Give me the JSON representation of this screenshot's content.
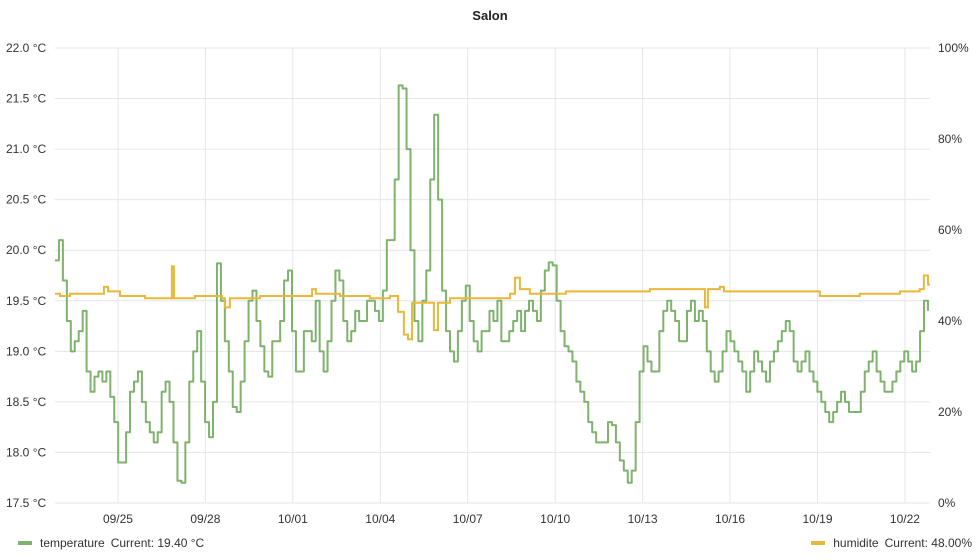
{
  "chart_data": {
    "type": "line",
    "title": "Salon",
    "x_unit": "days since 09/25",
    "xlim": [
      -2.16,
      27.86
    ],
    "x_ticks": [
      0,
      3,
      6,
      9,
      12,
      15,
      18,
      21,
      24,
      27
    ],
    "x_tick_labels": [
      "09/25",
      "09/28",
      "10/01",
      "10/04",
      "10/07",
      "10/10",
      "10/13",
      "10/16",
      "10/19",
      "10/22"
    ],
    "y_left": {
      "ylim": [
        17.5,
        22.0
      ],
      "ticks": [
        17.5,
        18.0,
        18.5,
        19.0,
        19.5,
        20.0,
        20.5,
        21.0,
        21.5,
        22.0
      ],
      "tick_labels": [
        "17.5 °C",
        "18.0 °C",
        "18.5 °C",
        "19.0 °C",
        "19.5 °C",
        "20.0 °C",
        "20.5 °C",
        "21.0 °C",
        "21.5 °C",
        "22.0 °C"
      ]
    },
    "y_right": {
      "ylim": [
        0,
        100
      ],
      "ticks": [
        0,
        20,
        40,
        60,
        80,
        100
      ],
      "tick_labels": [
        "0%",
        "20%",
        "40%",
        "60%",
        "80%",
        "100%"
      ]
    },
    "grid": true,
    "legend_placement": "bottom",
    "series": [
      {
        "name": "temperature",
        "axis": "left",
        "color": "#7EB26D",
        "legend_label": "temperature",
        "current_label": "Current: 19.40 °C",
        "t_start": -2.16,
        "t_end": 27.79,
        "values": [
          19.9,
          20.1,
          19.7,
          19.3,
          19.0,
          19.1,
          19.2,
          19.4,
          18.8,
          18.6,
          18.75,
          18.8,
          18.7,
          18.8,
          18.55,
          18.3,
          17.9,
          17.9,
          18.2,
          18.6,
          18.7,
          18.8,
          18.5,
          18.3,
          18.2,
          18.1,
          18.2,
          18.6,
          18.7,
          18.5,
          18.1,
          17.72,
          17.7,
          18.1,
          18.7,
          19.0,
          19.2,
          18.7,
          18.3,
          18.15,
          18.5,
          19.87,
          19.5,
          19.1,
          18.8,
          18.45,
          18.4,
          18.7,
          19.1,
          19.5,
          19.6,
          19.3,
          19.05,
          18.8,
          18.75,
          19.1,
          19.1,
          19.3,
          19.7,
          19.8,
          19.2,
          18.8,
          18.8,
          19.2,
          19.2,
          19.1,
          19.5,
          19.0,
          18.8,
          19.1,
          19.5,
          19.8,
          19.7,
          19.3,
          19.1,
          19.2,
          19.4,
          19.3,
          19.3,
          19.5,
          19.5,
          19.4,
          19.3,
          19.6,
          20.1,
          20.1,
          20.7,
          21.63,
          21.6,
          21.0,
          20.0,
          19.3,
          19.1,
          19.5,
          19.8,
          20.7,
          21.34,
          20.5,
          19.6,
          19.2,
          19.0,
          18.9,
          19.2,
          19.5,
          19.65,
          19.3,
          19.1,
          19.0,
          19.2,
          19.2,
          19.4,
          19.3,
          19.5,
          19.1,
          19.1,
          19.2,
          19.3,
          19.4,
          19.2,
          19.4,
          19.5,
          19.4,
          19.3,
          19.6,
          19.8,
          19.88,
          19.85,
          19.5,
          19.2,
          19.05,
          19.0,
          18.9,
          18.7,
          18.6,
          18.5,
          18.3,
          18.2,
          18.1,
          18.1,
          18.1,
          18.3,
          18.27,
          18.1,
          17.92,
          17.82,
          17.7,
          17.82,
          18.3,
          18.8,
          19.05,
          18.9,
          18.8,
          18.8,
          19.2,
          19.4,
          19.5,
          19.4,
          19.3,
          19.1,
          19.1,
          19.4,
          19.5,
          19.3,
          19.4,
          19.3,
          19.0,
          18.8,
          18.7,
          18.8,
          19.0,
          19.2,
          19.1,
          19.0,
          18.9,
          18.8,
          18.6,
          18.8,
          19.0,
          18.9,
          18.8,
          18.7,
          18.9,
          19.0,
          19.1,
          19.2,
          19.3,
          19.2,
          18.9,
          18.8,
          18.9,
          19.0,
          18.8,
          18.7,
          18.6,
          18.5,
          18.4,
          18.3,
          18.4,
          18.5,
          18.6,
          18.5,
          18.4,
          18.4,
          18.4,
          18.6,
          18.8,
          18.9,
          19.0,
          18.8,
          18.7,
          18.6,
          18.6,
          18.7,
          18.8,
          18.9,
          19.0,
          18.9,
          18.8,
          18.9,
          19.2,
          19.5,
          19.4
        ]
      },
      {
        "name": "humidite",
        "axis": "right",
        "color": "#EAB839",
        "legend_label": "humidite",
        "current_label": "Current: 48.00%",
        "points": [
          [
            -2.16,
            46
          ],
          [
            -1.99,
            45.5
          ],
          [
            -1.65,
            46
          ],
          [
            -0.62,
            46
          ],
          [
            -0.48,
            47.5
          ],
          [
            -0.34,
            46.5
          ],
          [
            0.07,
            45.5
          ],
          [
            0.93,
            45
          ],
          [
            1.78,
            45
          ],
          [
            1.85,
            52
          ],
          [
            1.92,
            45
          ],
          [
            2.64,
            45.5
          ],
          [
            3.57,
            45
          ],
          [
            3.67,
            43
          ],
          [
            3.84,
            45
          ],
          [
            4.87,
            45.5
          ],
          [
            5.9,
            45.5
          ],
          [
            6.66,
            47
          ],
          [
            6.79,
            46
          ],
          [
            7.62,
            45.5
          ],
          [
            8.64,
            45
          ],
          [
            9.33,
            45.5
          ],
          [
            9.61,
            42
          ],
          [
            9.81,
            37
          ],
          [
            9.95,
            36
          ],
          [
            10.09,
            44
          ],
          [
            10.7,
            44
          ],
          [
            10.84,
            38
          ],
          [
            10.98,
            44
          ],
          [
            11.39,
            45
          ],
          [
            13.1,
            45
          ],
          [
            13.45,
            46
          ],
          [
            13.62,
            49.5
          ],
          [
            13.79,
            47
          ],
          [
            14.13,
            46
          ],
          [
            15.16,
            46
          ],
          [
            15.37,
            46.5
          ],
          [
            17.91,
            46.5
          ],
          [
            18.25,
            47
          ],
          [
            19.97,
            47
          ],
          [
            20.14,
            43
          ],
          [
            20.24,
            47
          ],
          [
            20.65,
            47.5
          ],
          [
            20.79,
            46.5
          ],
          [
            22.02,
            46.5
          ],
          [
            23.74,
            46.5
          ],
          [
            24.08,
            45.5
          ],
          [
            24.77,
            45.5
          ],
          [
            25.45,
            46
          ],
          [
            26.83,
            46.5
          ],
          [
            27.51,
            47
          ],
          [
            27.65,
            50
          ],
          [
            27.79,
            48
          ]
        ]
      }
    ]
  }
}
